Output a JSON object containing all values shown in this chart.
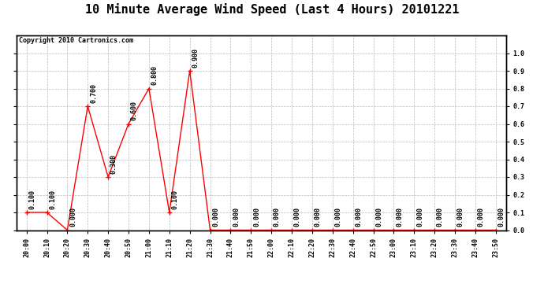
{
  "title": "10 Minute Average Wind Speed (Last 4 Hours) 20101221",
  "copyright": "Copyright 2010 Cartronics.com",
  "x_labels": [
    "20:00",
    "20:10",
    "20:20",
    "20:30",
    "20:40",
    "20:50",
    "21:00",
    "21:10",
    "21:20",
    "21:30",
    "21:40",
    "21:50",
    "22:00",
    "22:10",
    "22:20",
    "22:30",
    "22:40",
    "22:50",
    "23:00",
    "23:10",
    "23:20",
    "23:30",
    "23:40",
    "23:50"
  ],
  "y_values": [
    0.1,
    0.1,
    0.0,
    0.7,
    0.3,
    0.6,
    0.8,
    0.1,
    0.9,
    0.0,
    0.0,
    0.0,
    0.0,
    0.0,
    0.0,
    0.0,
    0.0,
    0.0,
    0.0,
    0.0,
    0.0,
    0.0,
    0.0,
    0.0
  ],
  "line_color": "#ff0000",
  "marker": "+",
  "marker_size": 5,
  "marker_color": "#ff0000",
  "ylim": [
    0.0,
    1.1
  ],
  "yticks": [
    0.0,
    0.1,
    0.2,
    0.3,
    0.4,
    0.5,
    0.6,
    0.7,
    0.8,
    0.9,
    1.0
  ],
  "background_color": "#ffffff",
  "grid_color": "#bbbbbb",
  "title_fontsize": 11,
  "tick_fontsize": 6,
  "annotation_fontsize": 6,
  "copyright_fontsize": 6
}
